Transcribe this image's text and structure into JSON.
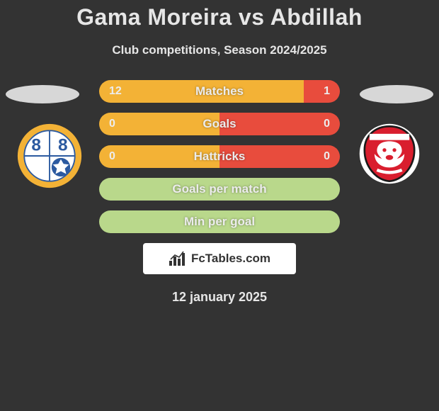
{
  "title": "Gama Moreira vs Abdillah",
  "subtitle": "Club competitions, Season 2024/2025",
  "date": "12 january 2025",
  "brand": "FcTables.com",
  "colors": {
    "left_team": "#f3b236",
    "right_team": "#e84c3d",
    "neutral": "#b9d88b",
    "background": "#333333"
  },
  "stats": [
    {
      "label": "Matches",
      "left_value": "12",
      "right_value": "1",
      "left_pct": 85,
      "right_pct": 15,
      "left_color": "#f3b236",
      "right_color": "#e84c3d",
      "show_values": true
    },
    {
      "label": "Goals",
      "left_value": "0",
      "right_value": "0",
      "left_pct": 50,
      "right_pct": 50,
      "left_color": "#f3b236",
      "right_color": "#e84c3d",
      "show_values": true
    },
    {
      "label": "Hattricks",
      "left_value": "0",
      "right_value": "0",
      "left_pct": 50,
      "right_pct": 50,
      "left_color": "#f3b236",
      "right_color": "#e84c3d",
      "show_values": true
    },
    {
      "label": "Goals per match",
      "left_value": "",
      "right_value": "",
      "left_pct": 100,
      "right_pct": 0,
      "left_color": "#b9d88b",
      "right_color": "#b9d88b",
      "show_values": false
    },
    {
      "label": "Min per goal",
      "left_value": "",
      "right_value": "",
      "left_pct": 100,
      "right_pct": 0,
      "left_color": "#b9d88b",
      "right_color": "#b9d88b",
      "show_values": false
    }
  ]
}
